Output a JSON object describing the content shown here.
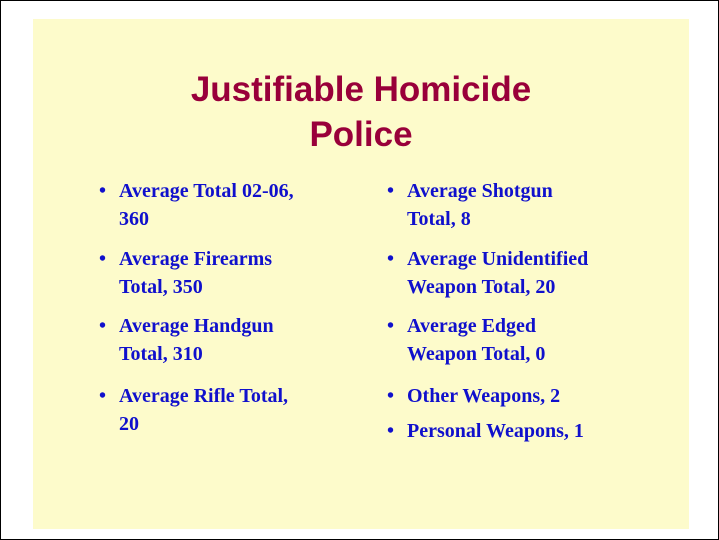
{
  "slide": {
    "title": [
      "Justifiable Homicide",
      "Police"
    ],
    "columns": [
      [
        [
          "Average Total 02-06,",
          "360"
        ],
        [
          "Average Firearms",
          "Total, 350"
        ],
        [
          "Average Handgun",
          "Total, 310"
        ],
        [
          "Average Rifle Total,",
          "20"
        ]
      ],
      [
        [
          "Average Shotgun",
          "Total, 8"
        ],
        [
          "Average Unidentified",
          "Weapon Total, 20"
        ],
        [
          "Average Edged",
          "Weapon Total, 0"
        ],
        [
          "Other Weapons, 2"
        ],
        [
          "Personal Weapons, 1"
        ]
      ]
    ]
  }
}
